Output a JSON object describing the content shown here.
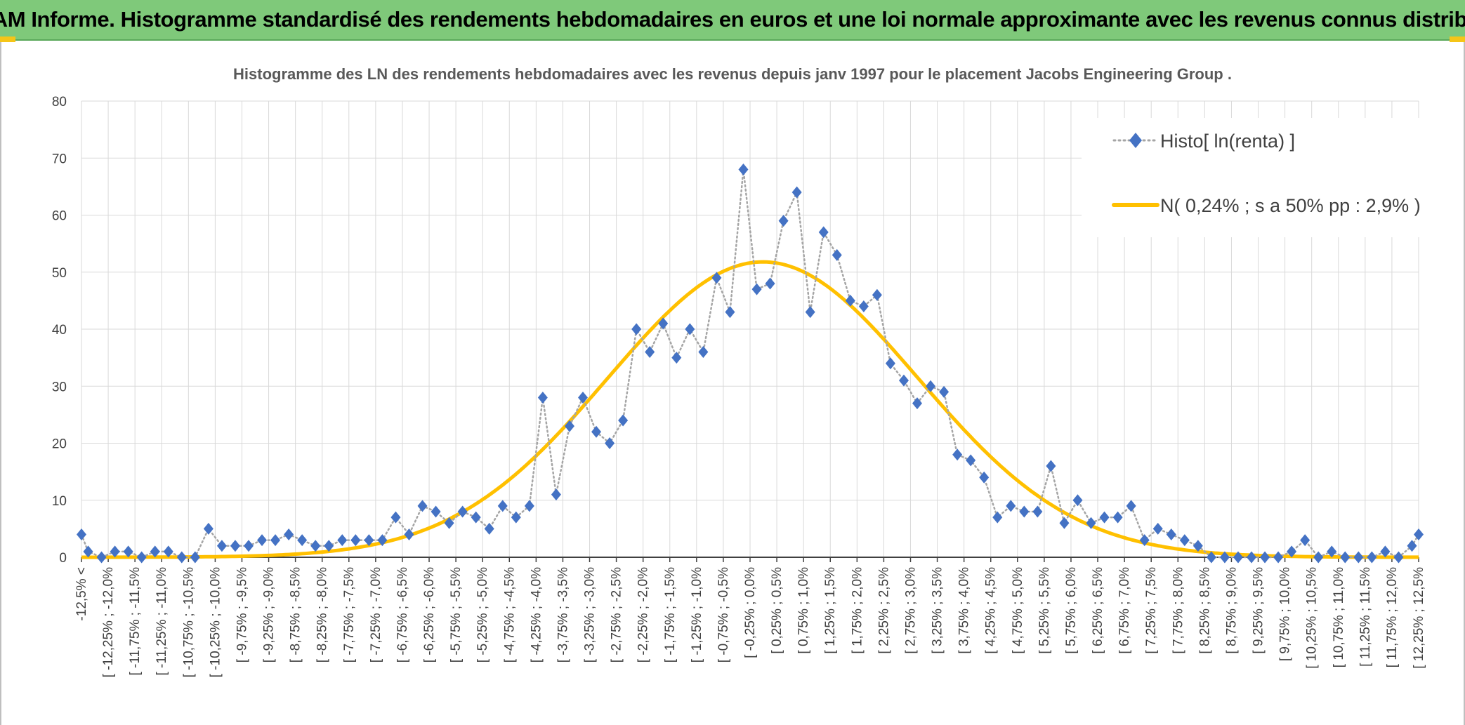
{
  "banner": {
    "title": "ADAM Informe. Histogramme standardisé des rendements hebdomadaires en euros et une loi normale approximante avec les revenus connus distribués"
  },
  "colors": {
    "banner_bg": "#7fc97a",
    "accent": "#f5c518",
    "histo_marker": "#4472c4",
    "histo_line": "#a5a5a5",
    "normal_curve": "#ffc000",
    "grid": "#d9d9d9"
  },
  "chart_data": {
    "type": "line",
    "title": "Histogramme des LN des rendements hebdomadaires avec les revenus depuis janv 1997 pour le placement Jacobs Engineering Group .",
    "xlabel": "",
    "ylabel": "",
    "ylim": [
      0,
      80
    ],
    "yticks": [
      "0",
      "10",
      "20",
      "30",
      "40",
      "50",
      "60",
      "70",
      "80"
    ],
    "grid": true,
    "legend_position": "top-right",
    "categories": [
      "-12,5% <",
      "[ -12,25% ; -12,0%",
      "[ -11,75% ; -11,5%",
      "[ -11,25% ; -11,0%",
      "[ -10,75% ; -10,5%",
      "[ -10,25% ; -10,0%",
      "[ -9,75% ; -9,5%",
      "[ -9,25% ; -9,0%",
      "[ -8,75% ; -8,5%",
      "[ -8,25% ; -8,0%",
      "[ -7,75% ; -7,5%",
      "[ -7,25% ; -7,0%",
      "[ -6,75% ; -6,5%",
      "[ -6,25% ; -6,0%",
      "[ -5,75% ; -5,5%",
      "[ -5,25% ; -5,0%",
      "[ -4,75% ; -4,5%",
      "[ -4,25% ; -4,0%",
      "[ -3,75% ; -3,5%",
      "[ -3,25% ; -3,0%",
      "[ -2,75% ; -2,5%",
      "[ -2,25% ; -2,0%",
      "[ -1,75% ; -1,5%",
      "[ -1,25% ; -1,0%",
      "[ -0,75% ; -0,5%",
      "[ -0,25% ; 0,0%",
      "[ 0,25% ; 0,5%",
      "[ 0,75% ; 1,0%",
      "[ 1,25% ; 1,5%",
      "[ 1,75% ; 2,0%",
      "[ 2,25% ; 2,5%",
      "[ 2,75% ; 3,0%",
      "[ 3,25% ; 3,5%",
      "[ 3,75% ; 4,0%",
      "[ 4,25% ; 4,5%",
      "[ 4,75% ; 5,0%",
      "[ 5,25% ; 5,5%",
      "[ 5,75% ; 6,0%",
      "[ 6,25% ; 6,5%",
      "[ 6,75% ; 7,0%",
      "[ 7,25% ; 7,5%",
      "[ 7,75% ; 8,0%",
      "[ 8,25% ; 8,5%",
      "[ 8,75% ; 9,0%",
      "[ 9,25% ; 9,5%",
      "[ 9,75% ; 10,0%",
      "[ 10,25% ; 10,5%",
      "[ 10,75% ; 11,0%",
      "[ 11,25% ; 11,5%",
      "[ 11,75% ; 12,0%",
      "[ 12,25% ; 12,5%"
    ],
    "series": [
      {
        "name": "Histo[ ln(renta) ]",
        "style": "dotted-line-diamond-markers",
        "x": [
          -12.5,
          -12.375,
          -12.125,
          -11.875,
          -11.625,
          -11.375,
          -11.125,
          -10.875,
          -10.625,
          -10.375,
          -10.125,
          -9.875,
          -9.625,
          -9.375,
          -9.125,
          -8.875,
          -8.625,
          -8.375,
          -8.125,
          -7.875,
          -7.625,
          -7.375,
          -7.125,
          -6.875,
          -6.625,
          -6.375,
          -6.125,
          -5.875,
          -5.625,
          -5.375,
          -5.125,
          -4.875,
          -4.625,
          -4.375,
          -4.125,
          -3.875,
          -3.625,
          -3.375,
          -3.125,
          -2.875,
          -2.625,
          -2.375,
          -2.125,
          -1.875,
          -1.625,
          -1.375,
          -1.125,
          -0.875,
          -0.625,
          -0.375,
          -0.125,
          0.125,
          0.375,
          0.625,
          0.875,
          1.125,
          1.375,
          1.625,
          1.875,
          2.125,
          2.375,
          2.625,
          2.875,
          3.125,
          3.375,
          3.625,
          3.875,
          4.125,
          4.375,
          4.625,
          4.875,
          5.125,
          5.375,
          5.625,
          5.875,
          6.125,
          6.375,
          6.625,
          6.875,
          7.125,
          7.375,
          7.625,
          7.875,
          8.125,
          8.375,
          8.625,
          8.875,
          9.125,
          9.375,
          9.625,
          9.875,
          10.125,
          10.375,
          10.625,
          10.875,
          11.125,
          11.375,
          11.625,
          11.875,
          12.125,
          12.375,
          12.5
        ],
        "values": [
          4,
          1,
          0,
          1,
          1,
          0,
          1,
          1,
          0,
          0,
          5,
          2,
          2,
          2,
          3,
          3,
          4,
          3,
          2,
          2,
          3,
          3,
          3,
          3,
          7,
          4,
          9,
          8,
          6,
          8,
          7,
          5,
          9,
          7,
          9,
          28,
          11,
          23,
          28,
          22,
          20,
          24,
          40,
          36,
          41,
          35,
          40,
          36,
          49,
          43,
          68,
          47,
          48,
          59,
          64,
          43,
          57,
          53,
          45,
          44,
          46,
          34,
          31,
          27,
          30,
          29,
          18,
          17,
          14,
          7,
          9,
          8,
          8,
          16,
          6,
          10,
          6,
          7,
          7,
          9,
          3,
          5,
          4,
          3,
          2,
          0,
          0,
          0,
          0,
          0,
          0,
          1,
          3,
          0,
          1,
          0,
          0,
          0,
          1,
          0,
          2,
          4
        ]
      },
      {
        "name": "N( 0,24% ; s a 50% pp : 2,9% )",
        "style": "smooth-line",
        "mean": 0.24,
        "sd": 2.9,
        "peak": 51.8
      }
    ]
  }
}
